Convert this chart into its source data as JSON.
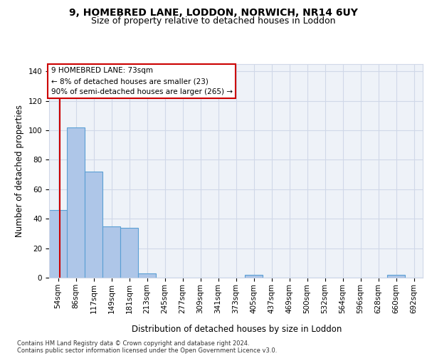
{
  "title1": "9, HOMEBRED LANE, LODDON, NORWICH, NR14 6UY",
  "title2": "Size of property relative to detached houses in Loddon",
  "xlabel": "Distribution of detached houses by size in Loddon",
  "ylabel": "Number of detached properties",
  "categories": [
    "54sqm",
    "86sqm",
    "117sqm",
    "149sqm",
    "181sqm",
    "213sqm",
    "245sqm",
    "277sqm",
    "309sqm",
    "341sqm",
    "373sqm",
    "405sqm",
    "437sqm",
    "469sqm",
    "500sqm",
    "532sqm",
    "564sqm",
    "596sqm",
    "628sqm",
    "660sqm",
    "692sqm"
  ],
  "values": [
    46,
    102,
    72,
    35,
    34,
    3,
    0,
    0,
    0,
    0,
    0,
    2,
    0,
    0,
    0,
    0,
    0,
    0,
    0,
    2,
    0
  ],
  "bar_color": "#aec6e8",
  "bar_edge_color": "#5a9fd4",
  "grid_color": "#d0d8e8",
  "background_color": "#eef2f8",
  "vline_color": "#cc0000",
  "annotation_box_text": "9 HOMEBRED LANE: 73sqm\n← 8% of detached houses are smaller (23)\n90% of semi-detached houses are larger (265) →",
  "annotation_box_color": "#cc0000",
  "ylim": [
    0,
    145
  ],
  "yticks": [
    0,
    20,
    40,
    60,
    80,
    100,
    120,
    140
  ],
  "footer": "Contains HM Land Registry data © Crown copyright and database right 2024.\nContains public sector information licensed under the Open Government Licence v3.0.",
  "title_fontsize": 10,
  "subtitle_fontsize": 9,
  "tick_fontsize": 7.5,
  "ylabel_fontsize": 8.5,
  "xlabel_fontsize": 8.5,
  "ann_fontsize": 7.5,
  "footer_fontsize": 6
}
